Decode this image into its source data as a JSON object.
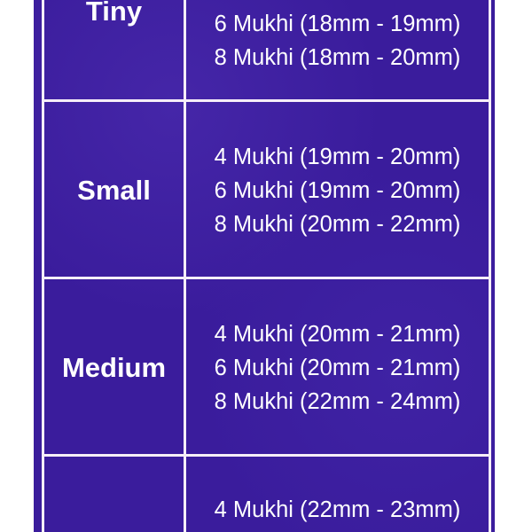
{
  "colors": {
    "background": "#3a1c9c",
    "border": "#f6eef8",
    "text": "#ffffff"
  },
  "rows": [
    {
      "size": "Tiny",
      "specs": [
        "6 Mukhi (18mm - 19mm)",
        "8 Mukhi (18mm - 20mm)"
      ]
    },
    {
      "size": "Small",
      "specs": [
        "4 Mukhi (19mm - 20mm)",
        "6 Mukhi (19mm - 20mm)",
        "8 Mukhi (20mm - 22mm)"
      ]
    },
    {
      "size": "Medium",
      "specs": [
        "4 Mukhi (20mm - 21mm)",
        "6 Mukhi (20mm - 21mm)",
        "8 Mukhi (22mm - 24mm)"
      ]
    },
    {
      "size": "",
      "specs": [
        "4 Mukhi (22mm - 23mm)"
      ]
    }
  ]
}
